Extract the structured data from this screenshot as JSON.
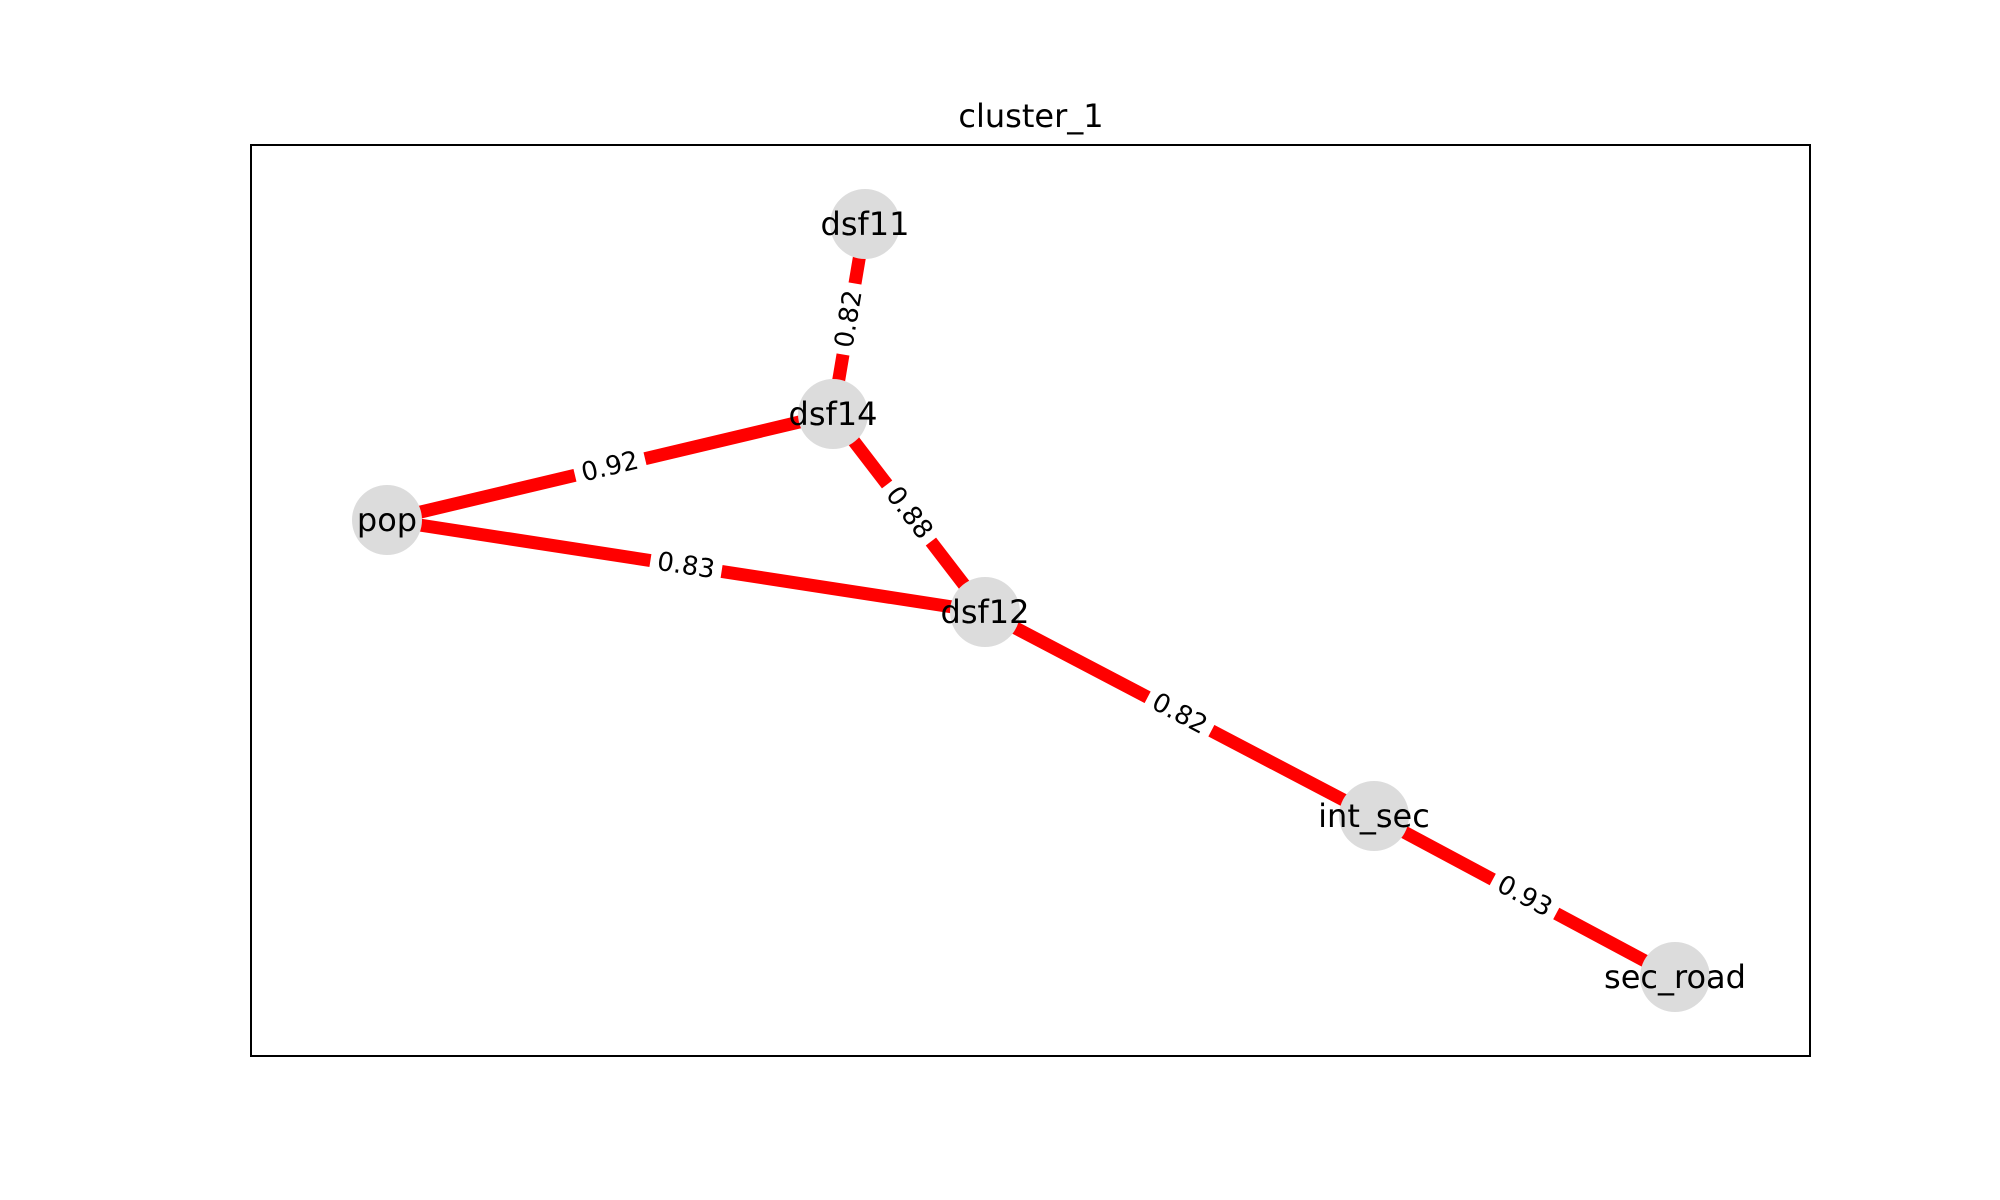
{
  "title": "cluster_1",
  "colors": {
    "edge": "#ff0000",
    "node": "#dcdcdc",
    "label_bg": "#ffffff",
    "frame": "#000000"
  },
  "nodes": [
    {
      "id": "dsf11",
      "label": "dsf11"
    },
    {
      "id": "dsf14",
      "label": "dsf14"
    },
    {
      "id": "pop",
      "label": "pop"
    },
    {
      "id": "dsf12",
      "label": "dsf12"
    },
    {
      "id": "int_sec",
      "label": "int_sec"
    },
    {
      "id": "sec_road",
      "label": "sec_road"
    }
  ],
  "edges": [
    {
      "source": "dsf11",
      "target": "dsf14",
      "weight": "0.82"
    },
    {
      "source": "dsf14",
      "target": "pop",
      "weight": "0.92"
    },
    {
      "source": "dsf14",
      "target": "dsf12",
      "weight": "0.88"
    },
    {
      "source": "pop",
      "target": "dsf12",
      "weight": "0.83"
    },
    {
      "source": "dsf12",
      "target": "int_sec",
      "weight": "0.82"
    },
    {
      "source": "int_sec",
      "target": "sec_road",
      "weight": "0.93"
    }
  ]
}
